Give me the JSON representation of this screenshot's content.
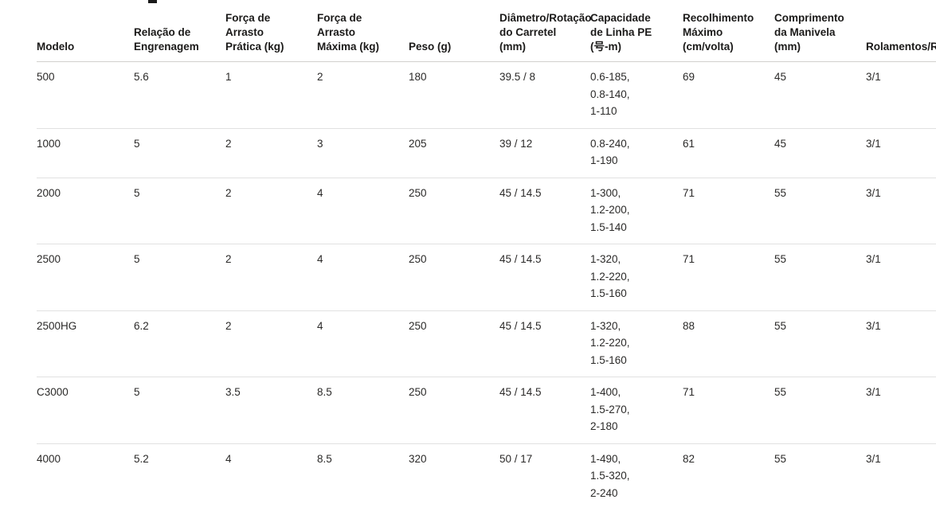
{
  "table": {
    "columns": [
      {
        "key": "modelo",
        "label": "Modelo"
      },
      {
        "key": "relacao_engrenagem",
        "label": "Relação de Engrenagem"
      },
      {
        "key": "arrasto_pratica",
        "label": "Força de Arrasto Prática (kg)"
      },
      {
        "key": "arrasto_maxima",
        "label": "Força de Arrasto Máxima (kg)"
      },
      {
        "key": "peso",
        "label": "Peso (g)"
      },
      {
        "key": "diametro_rotacao",
        "label": "Diâmetro/Rotação do Carretel (mm)"
      },
      {
        "key": "capacidade_linha_pe",
        "label": "Capacidade de Linha PE (号-m)"
      },
      {
        "key": "recolhimento_maximo",
        "label": "Recolhimento Máximo (cm/volta)"
      },
      {
        "key": "comprimento_manivela",
        "label": "Comprimento da Manivela (mm)"
      },
      {
        "key": "rolamentos_rolos",
        "label": "Rolamentos/Rolos"
      }
    ],
    "rows": [
      {
        "cells": [
          "500",
          "5.6",
          "1",
          "2",
          "180",
          "39.5 / 8",
          "0.6-185,\n0.8-140,\n1-110",
          "69",
          "45",
          "3/1"
        ]
      },
      {
        "cells": [
          "1000",
          "5",
          "2",
          "3",
          "205",
          "39 / 12",
          "0.8-240,\n1-190",
          "61",
          "45",
          "3/1"
        ]
      },
      {
        "cells": [
          "2000",
          "5",
          "2",
          "4",
          "250",
          "45 / 14.5",
          "1-300,\n1.2-200,\n1.5-140",
          "71",
          "55",
          "3/1"
        ]
      },
      {
        "cells": [
          "2500",
          "5",
          "2",
          "4",
          "250",
          "45 / 14.5",
          "1-320,\n1.2-220,\n1.5-160",
          "71",
          "55",
          "3/1"
        ]
      },
      {
        "cells": [
          "2500HG",
          "6.2",
          "2",
          "4",
          "250",
          "45 / 14.5",
          "1-320,\n1.2-220,\n1.5-160",
          "88",
          "55",
          "3/1"
        ]
      },
      {
        "cells": [
          "C3000",
          "5",
          "3.5",
          "8.5",
          "250",
          "45 / 14.5",
          "1-400,\n1.5-270,\n2-180",
          "71",
          "55",
          "3/1"
        ]
      },
      {
        "cells": [
          "4000",
          "5.2",
          "4",
          "8.5",
          "320",
          "50 / 17",
          "1-490,\n1.5-320,\n2-240",
          "82",
          "55",
          "3/1"
        ]
      }
    ]
  },
  "colors": {
    "header_text": "#1b1a19",
    "body_text": "#2b2a29",
    "header_rule": "#d2d0ce",
    "row_rule": "#e1e1e1",
    "background": "#ffffff"
  }
}
